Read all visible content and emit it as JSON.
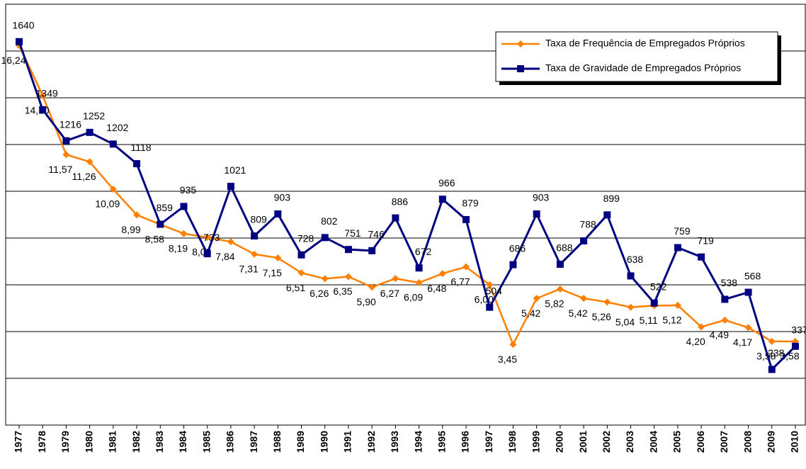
{
  "chart_data": {
    "type": "line",
    "categories": [
      "1977",
      "1978",
      "1979",
      "1980",
      "1981",
      "1982",
      "1983",
      "1984",
      "1985",
      "1986",
      "1987",
      "1988",
      "1989",
      "1990",
      "1991",
      "1992",
      "1993",
      "1994",
      "1995",
      "1996",
      "1997",
      "1998",
      "1999",
      "2000",
      "2001",
      "2002",
      "2003",
      "2004",
      "2005",
      "2006",
      "2007",
      "2008",
      "2009",
      "2010"
    ],
    "series": [
      {
        "name": "Taxa de Frequência de Empregados Próprios",
        "color": "#ff8000",
        "marker": "diamond",
        "values": [
          16.24,
          14.1,
          11.57,
          11.26,
          10.09,
          8.99,
          8.58,
          8.19,
          8.03,
          7.84,
          7.31,
          7.15,
          6.51,
          6.26,
          6.35,
          5.9,
          6.27,
          6.09,
          6.48,
          6.77,
          6.0,
          3.45,
          5.42,
          5.82,
          5.42,
          5.26,
          5.04,
          5.11,
          5.12,
          4.2,
          4.49,
          4.17,
          3.58,
          3.58
        ],
        "value_labels": [
          "16,24",
          "14,10",
          "11,57",
          "11,26",
          "10,09",
          "8,99",
          "8,58",
          "8,19",
          "8,03",
          "7,84",
          "7,31",
          "7,15",
          "6,51",
          "6,26",
          "6,35",
          "5,90",
          "6,27",
          "6,09",
          "6,48",
          "6,77",
          "6,00",
          "3,45",
          "5,42",
          "5,82",
          "5,42",
          "5,26",
          "5,04",
          "5,11",
          "5,12",
          "4,20",
          "4,49",
          "4,17",
          "3,58",
          "3,58"
        ]
      },
      {
        "name": "Taxa de Gravidade de Empregados Próprios",
        "color": "#000080",
        "marker": "square",
        "axis": "y2",
        "values": [
          1640,
          1349,
          1216,
          1252,
          1202,
          1118,
          859,
          935,
          733,
          1021,
          809,
          903,
          728,
          802,
          751,
          746,
          886,
          672,
          966,
          879,
          504,
          686,
          903,
          688,
          788,
          899,
          638,
          522,
          759,
          719,
          538,
          568,
          238,
          337
        ]
      }
    ],
    "ylim": [
      0,
      18
    ],
    "yticks": [
      0,
      2,
      4,
      6,
      8,
      10,
      12,
      14,
      16,
      18
    ],
    "y2lim": [
      0,
      1800
    ],
    "grid": true,
    "legend": "upper right"
  }
}
